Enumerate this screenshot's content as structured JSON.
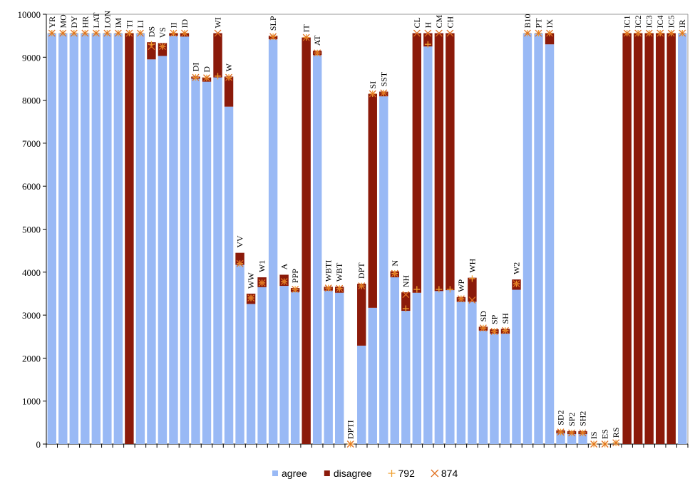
{
  "chart_data": {
    "type": "bar",
    "stacked": true,
    "categories": [
      "YR",
      "MO",
      "DY",
      "HR",
      "LAT",
      "LON",
      "IM",
      "TI",
      "LI",
      "DS",
      "VS",
      "II",
      "ID",
      "DI",
      "D",
      "WI",
      "W",
      "VV",
      "WW",
      "W1",
      "SLP",
      "A",
      "PPP",
      "IT",
      "AT",
      "WBTI",
      "WBT",
      "DPTI",
      "DPT",
      "SI",
      "SST",
      "N",
      "NH",
      "CL",
      "H",
      "CM",
      "CH",
      "WP",
      "WH",
      "SD",
      "SP",
      "SH",
      "W2",
      "B10",
      "PT",
      "IX",
      "SD2",
      "SP2",
      "SH2",
      "IS",
      "ES",
      "RS",
      "IC1",
      "IC2",
      "IC3",
      "IC4",
      "IC5",
      "IR"
    ],
    "series": [
      {
        "name": "agree",
        "type": "bar",
        "color": "#99b9f5",
        "values": [
          9560,
          9560,
          9560,
          9560,
          9560,
          9560,
          9560,
          0,
          9560,
          8950,
          9030,
          9500,
          9480,
          8500,
          8430,
          8530,
          7850,
          4170,
          3260,
          3650,
          9420,
          3680,
          3540,
          0,
          9050,
          3570,
          3520,
          0,
          2290,
          3170,
          8090,
          3880,
          3100,
          3520,
          9250,
          3560,
          3580,
          3310,
          3310,
          2640,
          2570,
          2570,
          3590,
          9560,
          9560,
          9300,
          250,
          230,
          230,
          0,
          0,
          0,
          0,
          0,
          0,
          0,
          0,
          9560
        ]
      },
      {
        "name": "disagree",
        "type": "bar",
        "color": "#8b1a0a",
        "values": [
          0,
          0,
          0,
          0,
          0,
          0,
          0,
          9560,
          0,
          400,
          300,
          60,
          80,
          50,
          100,
          1030,
          700,
          280,
          240,
          230,
          80,
          260,
          90,
          9460,
          100,
          90,
          140,
          0,
          1440,
          4980,
          110,
          140,
          430,
          6040,
          310,
          6000,
          5980,
          110,
          560,
          90,
          100,
          110,
          240,
          0,
          0,
          260,
          70,
          70,
          70,
          0,
          0,
          0,
          9560,
          9560,
          9560,
          9560,
          9560,
          0
        ]
      },
      {
        "name": "792",
        "type": "scatter",
        "marker": "plus",
        "color": "#f0a030",
        "values": [
          9560,
          9560,
          9560,
          9560,
          9560,
          9560,
          9560,
          9560,
          9560,
          9300,
          9250,
          9560,
          9560,
          8530,
          8520,
          8560,
          8530,
          4200,
          3400,
          3750,
          9480,
          3780,
          3600,
          9460,
          9100,
          3630,
          3620,
          0,
          3680,
          8150,
          8170,
          3970,
          3150,
          3600,
          9300,
          3600,
          3600,
          3380,
          3850,
          2700,
          2620,
          2640,
          3730,
          9560,
          9560,
          9560,
          280,
          260,
          260,
          0,
          0,
          30,
          9560,
          9560,
          9560,
          9560,
          9560,
          9560
        ]
      },
      {
        "name": "874",
        "type": "scatter",
        "marker": "cross",
        "color": "#e07020",
        "values": [
          9560,
          9560,
          9560,
          9560,
          9560,
          9560,
          9560,
          9560,
          9560,
          9250,
          9250,
          9560,
          9560,
          8530,
          8520,
          9560,
          8530,
          4200,
          3400,
          3750,
          9480,
          3780,
          3600,
          9460,
          9100,
          3630,
          3620,
          0,
          3680,
          8150,
          8170,
          3970,
          3480,
          9560,
          9560,
          9560,
          9560,
          3380,
          3350,
          2700,
          2620,
          2640,
          3730,
          9560,
          9560,
          9560,
          280,
          260,
          260,
          0,
          0,
          30,
          9560,
          9560,
          9560,
          9560,
          9560,
          9560
        ]
      }
    ],
    "ylim": [
      0,
      10000
    ],
    "yticks": [
      0,
      1000,
      2000,
      3000,
      4000,
      5000,
      6000,
      7000,
      8000,
      9000,
      10000
    ],
    "grid": false,
    "legend": "bottom"
  }
}
